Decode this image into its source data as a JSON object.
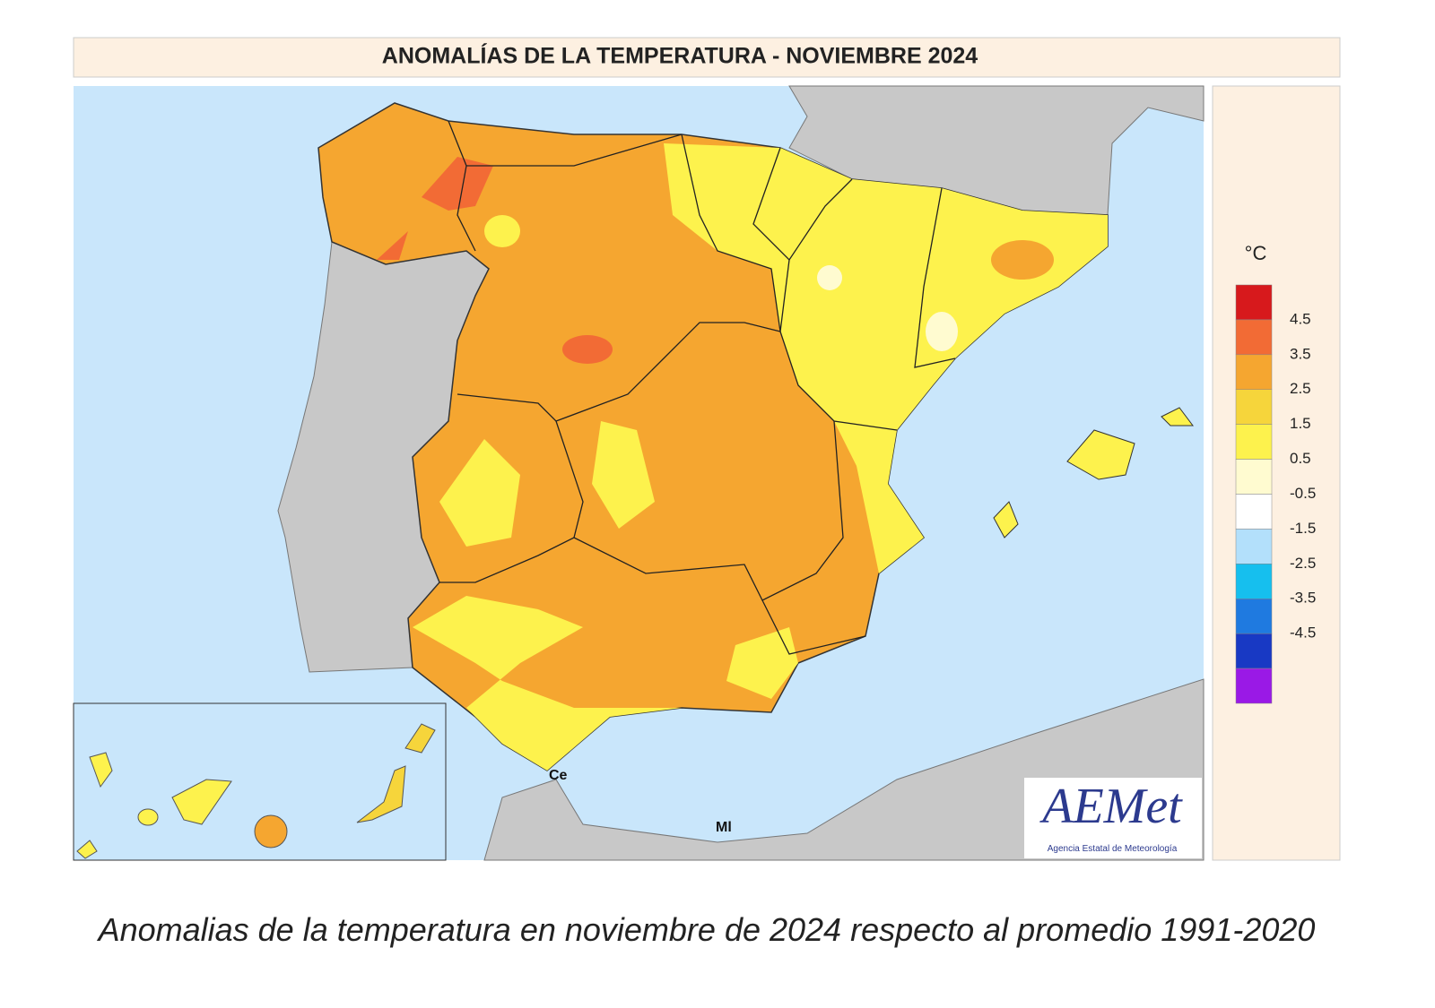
{
  "title": "ANOMALÍAS DE LA TEMPERATURA - NOVIEMBRE 2024",
  "legend": {
    "unit": "°C",
    "colors": [
      "#d7191c",
      "#f26b35",
      "#f5a630",
      "#f6d53b",
      "#fdf24d",
      "#fffbd0",
      "#ffffff",
      "#b3e0fb",
      "#16bfee",
      "#1f7ae0",
      "#1839c4",
      "#9a19e6"
    ],
    "ticks": [
      4.5,
      3.5,
      2.5,
      1.5,
      0.5,
      -0.5,
      -1.5,
      -2.5,
      -3.5,
      -4.5
    ]
  },
  "labels": {
    "ceuta": "Ce",
    "melilla": "Ml"
  },
  "logo": {
    "name": "AEMet",
    "subtitle": "Agencia Estatal de Meteorología"
  },
  "caption": "Anomalias de la temperatura en noviembre de 2024 respecto al promedio 1991-2020"
}
